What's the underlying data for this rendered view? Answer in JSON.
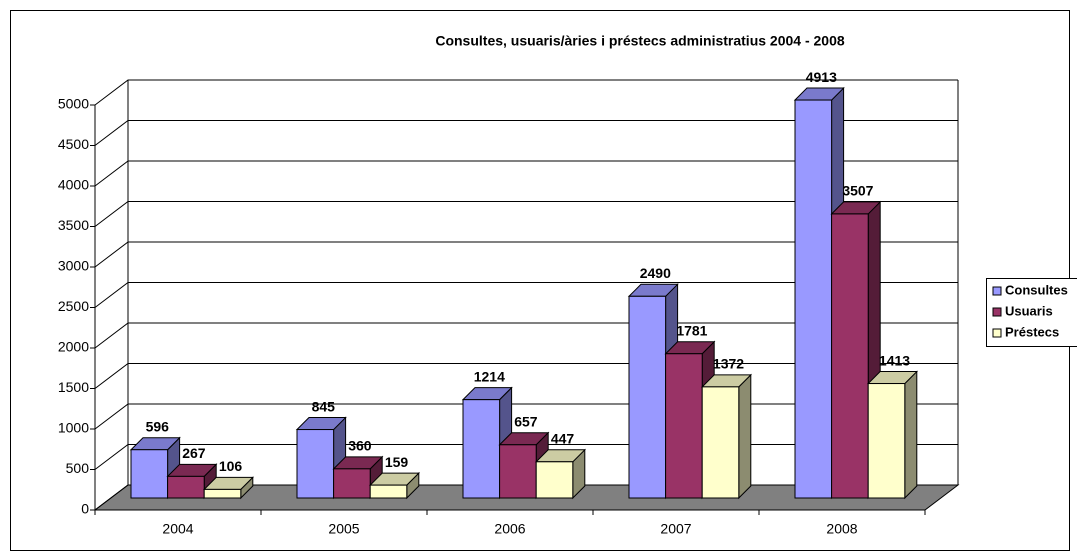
{
  "chart_data": {
    "type": "bar3d",
    "title": "Consultes, usuaris/àries i préstecs administratius 2004 - 2008",
    "categories": [
      "2004",
      "2005",
      "2006",
      "2007",
      "2008"
    ],
    "series": [
      {
        "name": "Consultes",
        "color": "#9999ff",
        "values": [
          596,
          845,
          1214,
          2490,
          4913
        ]
      },
      {
        "name": "Usuaris",
        "color": "#993366",
        "values": [
          267,
          360,
          657,
          1781,
          3507
        ]
      },
      {
        "name": "Préstecs",
        "color": "#ffffcc",
        "values": [
          106,
          159,
          447,
          1372,
          1413
        ]
      }
    ],
    "ylim": [
      0,
      5000
    ],
    "yticks": [
      0,
      500,
      1000,
      1500,
      2000,
      2500,
      3000,
      3500,
      4000,
      4500,
      5000
    ],
    "grid": true,
    "legend": "right"
  }
}
